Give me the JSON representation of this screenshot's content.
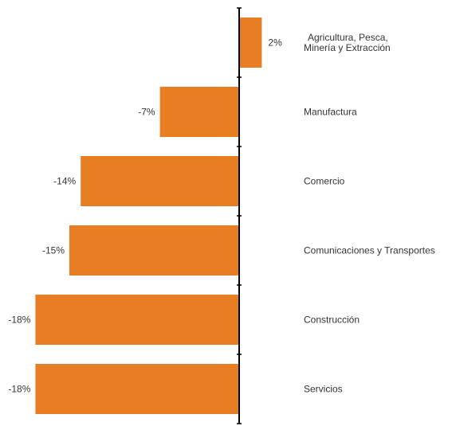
{
  "chart_data": {
    "type": "bar",
    "orientation": "horizontal",
    "categories": [
      [
        "Agricultura, Pesca,",
        "Minería y Extracción"
      ],
      [
        "Manufactura"
      ],
      [
        "Comercio"
      ],
      [
        "Comunicaciones y Transportes"
      ],
      [
        "Construcción"
      ],
      [
        "Servicios"
      ]
    ],
    "values": [
      2,
      -7,
      -14,
      -15,
      -18,
      -18
    ],
    "value_labels": [
      "2%",
      "-7%",
      "-14%",
      "-15%",
      "-18%",
      "-18%"
    ],
    "value_unit": "%",
    "xlim": [
      -18,
      2
    ],
    "grid": false,
    "legend": "none",
    "bar_color": "#E87E24",
    "axis_color": "#000000",
    "text_color": "#333333"
  }
}
